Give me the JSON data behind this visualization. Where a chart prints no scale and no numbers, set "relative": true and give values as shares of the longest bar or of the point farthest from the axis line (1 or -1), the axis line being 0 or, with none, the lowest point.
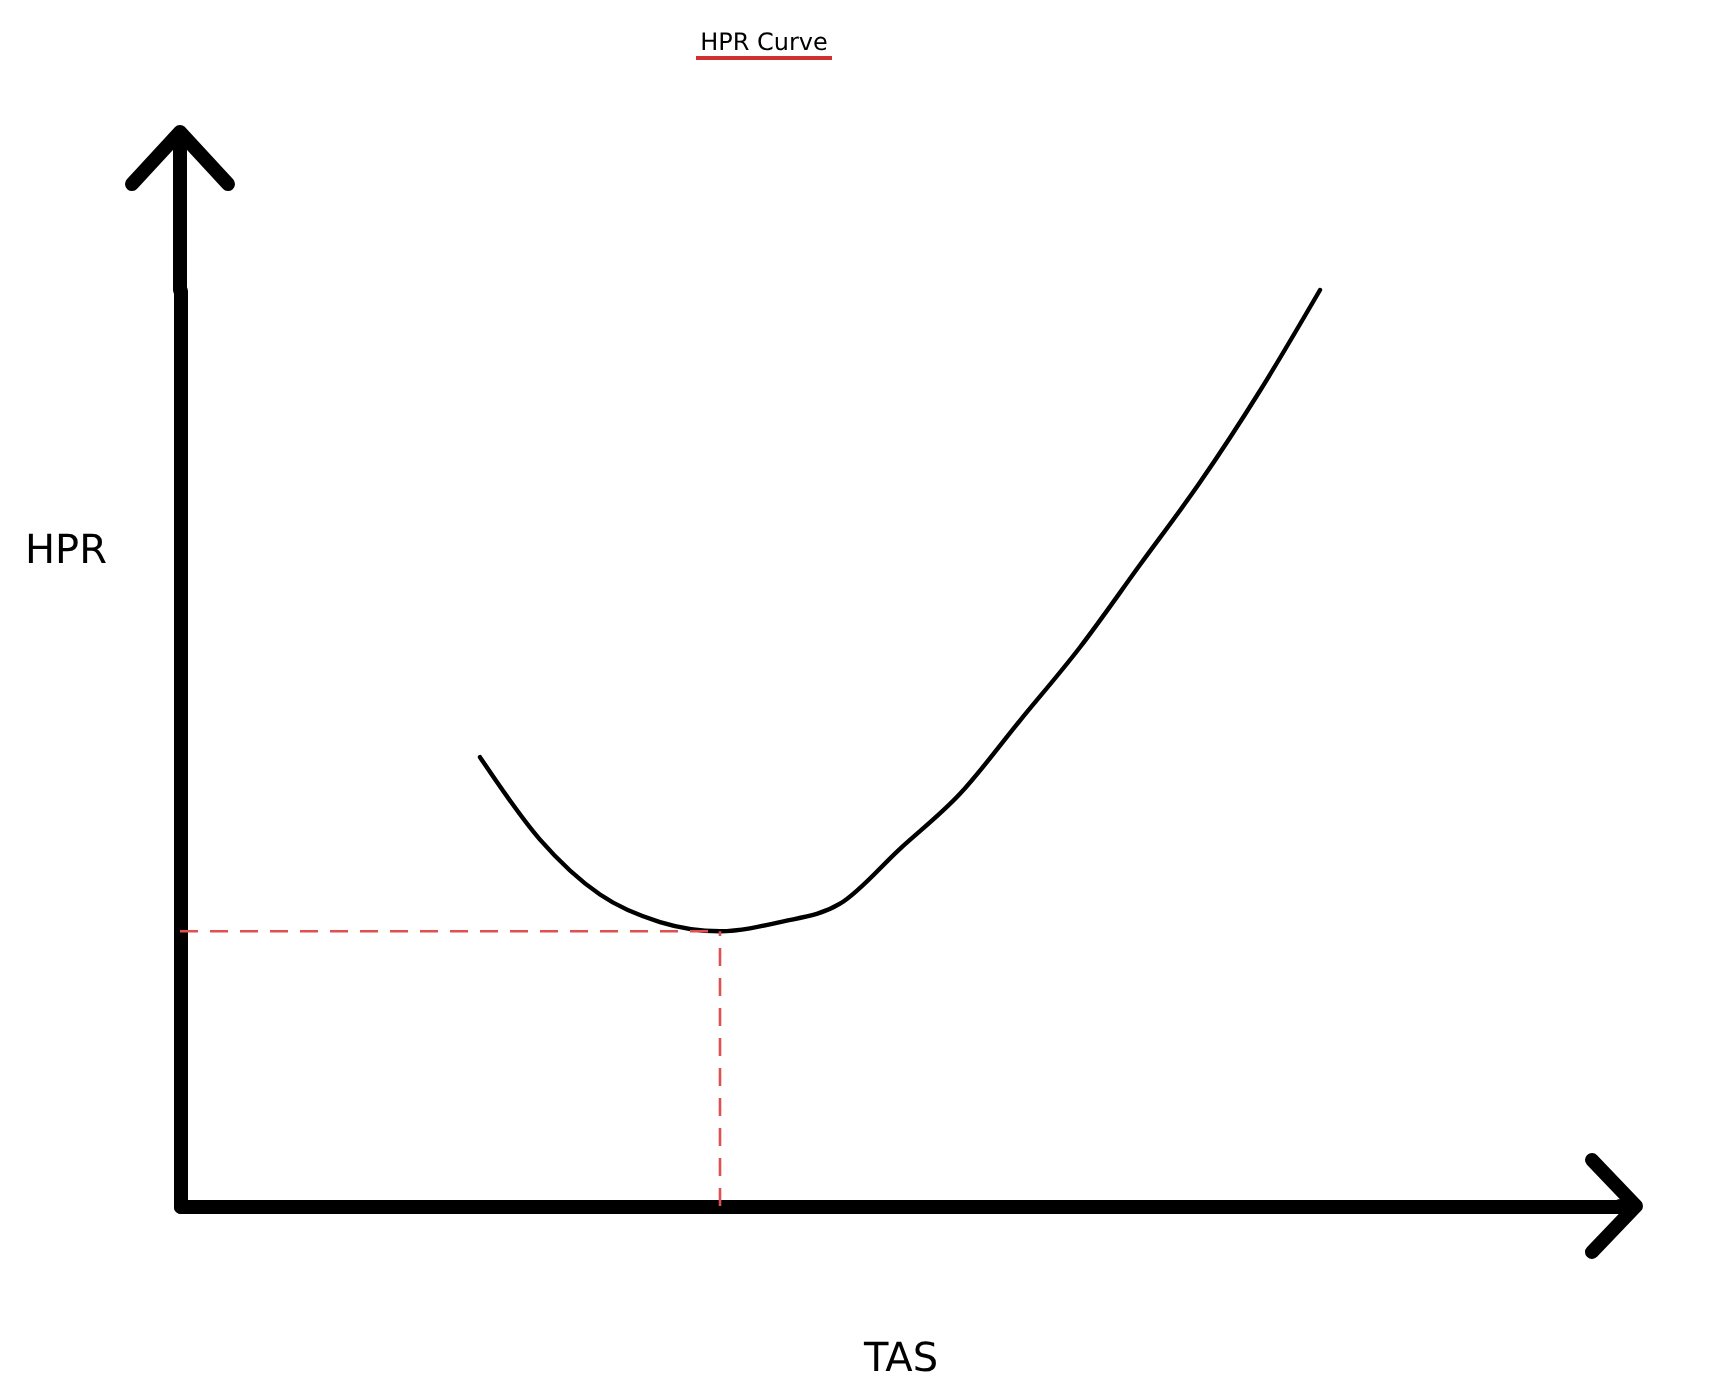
{
  "chart_data": {
    "type": "line",
    "title": "HPR Curve",
    "xlabel": "TAS",
    "ylabel": "HPR",
    "relative": true,
    "categories": [
      null,
      null,
      null,
      null,
      null,
      null,
      null,
      null,
      null,
      null,
      null,
      null,
      null,
      null,
      null,
      null,
      null,
      null,
      null,
      null,
      null,
      null,
      null,
      null,
      null
    ],
    "series": [
      {
        "color": "#000000",
        "values": [
          null,
          null,
          null,
          null,
          null,
          0.49,
          0.4,
          0.34,
          0.31,
          0.3,
          0.31,
          0.33,
          0.39,
          0.45,
          0.53,
          0.61,
          0.7,
          0.79,
          0.89,
          1,
          null,
          null,
          null,
          null,
          null
        ]
      }
    ],
    "ref_lines": [
      {
        "axis": "y",
        "value": 0.3,
        "color": "#e05050",
        "line_style": "dashed"
      }
    ],
    "grid": false
  }
}
